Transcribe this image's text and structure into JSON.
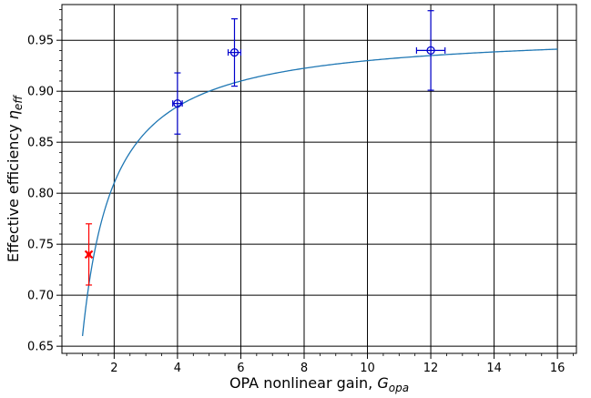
{
  "chart_data": {
    "type": "scatter",
    "title": "",
    "xlabel": {
      "main": "OPA nonlinear gain, ",
      "symbol": "G",
      "sub": "opa"
    },
    "ylabel": {
      "main": "Effective efficiency ",
      "symbol": "η",
      "sub": "eff"
    },
    "xlim": [
      0.35,
      16.6
    ],
    "ylim": [
      0.643,
      0.985
    ],
    "xticks": [
      2,
      4,
      6,
      8,
      10,
      12,
      14,
      16
    ],
    "yticks": [
      0.65,
      0.7,
      0.75,
      0.8,
      0.85,
      0.9,
      0.95
    ],
    "xtick_labels": [
      "2",
      "4",
      "6",
      "8",
      "10",
      "12",
      "14",
      "16"
    ],
    "ytick_labels": [
      "0.65",
      "0.70",
      "0.75",
      "0.80",
      "0.85",
      "0.90",
      "0.95"
    ],
    "grid": true,
    "series": [
      {
        "kind": "line",
        "color": "#1f77b4",
        "model": {
          "eta_inf": 0.96,
          "g_ref": 1.0,
          "eta_ref": 0.66
        },
        "x_range": [
          1.0,
          16.0
        ]
      },
      {
        "kind": "errorbar",
        "marker": "x",
        "color": "#ff0000",
        "points": [
          {
            "x": 1.2,
            "y": 0.74,
            "xerr": 0.05,
            "yerr": 0.03
          }
        ]
      },
      {
        "kind": "errorbar",
        "marker": "o",
        "color": "#0000cc",
        "points": [
          {
            "x": 4.0,
            "y": 0.888,
            "xerr": 0.15,
            "yerr": 0.03
          },
          {
            "x": 5.8,
            "y": 0.938,
            "xerr": 0.2,
            "yerr": 0.033
          },
          {
            "x": 12.0,
            "y": 0.94,
            "xerr": 0.45,
            "yerr": 0.039
          }
        ]
      }
    ]
  }
}
